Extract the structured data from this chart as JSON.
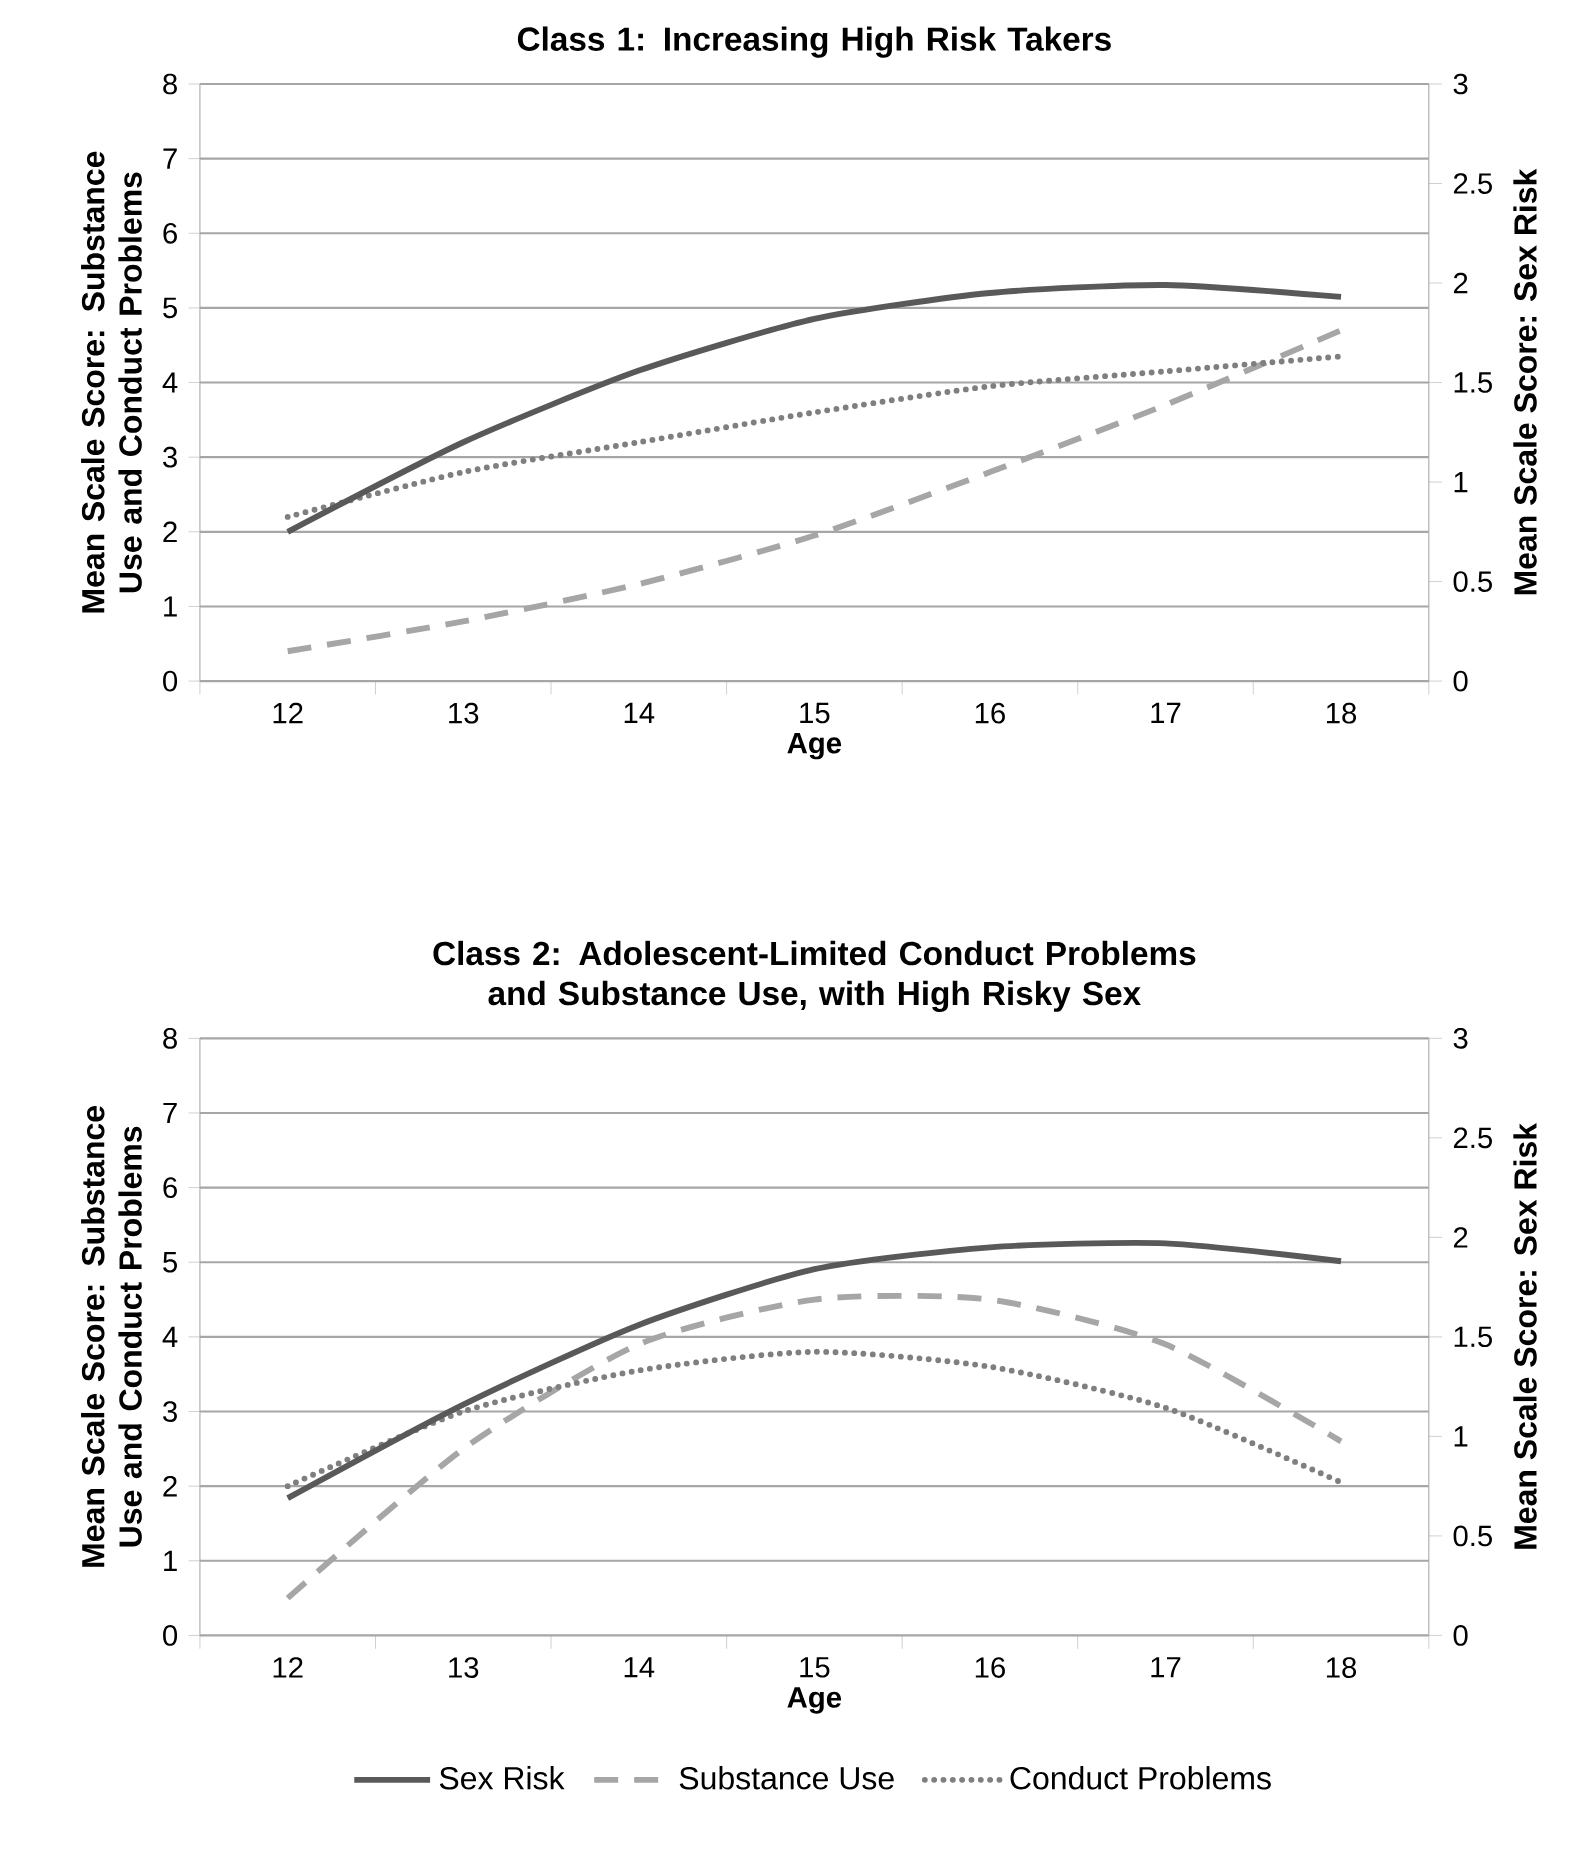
{
  "chart_data": [
    {
      "type": "line",
      "title": "Class 1: Increasing High Risk Takers",
      "xlabel": "Age",
      "ylabel": "Mean Scale Score: Substance Use and Conduct Problems",
      "y2label": "Mean Scale Score: Sex Risk",
      "categories": [
        "12",
        "13",
        "14",
        "15",
        "16",
        "17",
        "18"
      ],
      "ylim": [
        0,
        8
      ],
      "yticks": [
        0,
        1,
        2,
        3,
        4,
        5,
        6,
        7,
        8
      ],
      "y2lim": [
        0,
        3
      ],
      "y2ticks": [
        0,
        0.5,
        1,
        1.5,
        2,
        2.5,
        3
      ],
      "grid": "y",
      "legend": false,
      "marker": "none",
      "series": [
        {
          "color": "#595959",
          "line_style": "solid",
          "axis": "y2",
          "values": [
            0.75,
            1.2,
            1.56,
            1.82,
            1.95,
            1.99,
            1.93
          ]
        },
        {
          "color": "#a6a6a6",
          "line_style": "dashed",
          "values": [
            0.4,
            0.8,
            1.3,
            1.95,
            2.8,
            3.7,
            4.7
          ]
        },
        {
          "color": "#7f7f7f",
          "line_style": "dotted",
          "values": [
            2.2,
            2.8,
            3.2,
            3.6,
            3.95,
            4.15,
            4.35
          ]
        }
      ]
    },
    {
      "type": "line",
      "title": "Class 2: Adolescent-Limited Conduct Problems and Substance Use, with High Risky Sex",
      "xlabel": "Age",
      "ylabel": "Mean Scale Score: Substance Use and Conduct Problems",
      "y2label": "Mean Scale Score: Sex Risk",
      "categories": [
        "12",
        "13",
        "14",
        "15",
        "16",
        "17",
        "18"
      ],
      "ylim": [
        0,
        8
      ],
      "yticks": [
        0,
        1,
        2,
        3,
        4,
        5,
        6,
        7,
        8
      ],
      "y2lim": [
        0,
        3
      ],
      "y2ticks": [
        0,
        0.5,
        1,
        1.5,
        2,
        2.5,
        3
      ],
      "grid": "y",
      "legend": "bottom",
      "marker": "none",
      "series": [
        {
          "name": "Sex Risk",
          "color": "#595959",
          "line_style": "solid",
          "axis": "y2",
          "values": [
            0.69,
            1.16,
            1.56,
            1.84,
            1.95,
            1.97,
            1.88
          ]
        },
        {
          "name": "Substance Use",
          "color": "#a6a6a6",
          "line_style": "dashed",
          "values": [
            0.5,
            2.5,
            3.9,
            4.5,
            4.5,
            3.9,
            2.6
          ]
        },
        {
          "name": "Conduct Problems",
          "color": "#7f7f7f",
          "line_style": "dotted",
          "values": [
            2.0,
            3.0,
            3.55,
            3.8,
            3.6,
            3.05,
            2.05
          ]
        }
      ]
    }
  ]
}
